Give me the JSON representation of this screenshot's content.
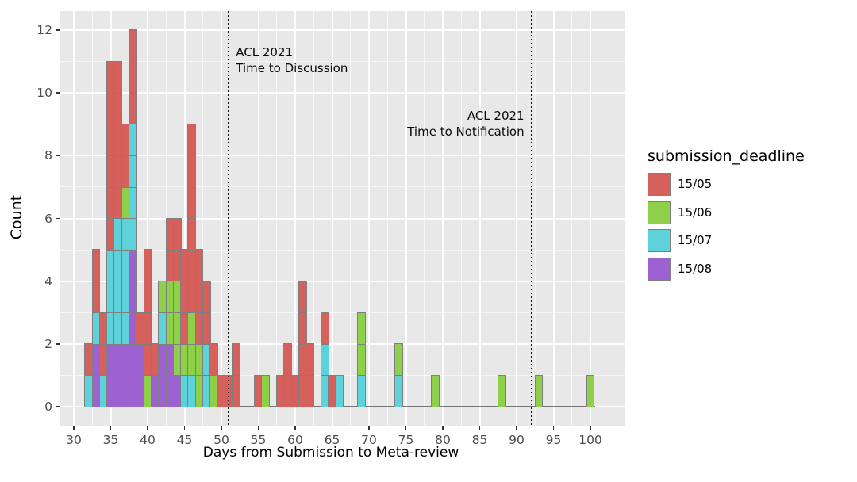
{
  "figure": {
    "x_axis_title": "Days from Submission to Meta-review",
    "y_axis_title": "Count",
    "legend": {
      "title": "submission_deadline",
      "items": [
        {
          "label": "15/05",
          "color": "#D6605B"
        },
        {
          "label": "15/06",
          "color": "#8FD04A"
        },
        {
          "label": "15/07",
          "color": "#5DD2DB"
        },
        {
          "label": "15/08",
          "color": "#9D61D2"
        }
      ]
    },
    "annotations": [
      {
        "line1": "ACL 2021",
        "line2": "Time to Discussion",
        "at_day": 51,
        "align": "left"
      },
      {
        "line1": "ACL 2021",
        "line2": "Time to Notification",
        "at_day": 92,
        "align": "right"
      }
    ],
    "colors": {
      "panel_bg": "#E8E8E8",
      "grid_major": "#FFFFFF",
      "cell_border": "#7F7F7F",
      "tick_label": "#4D4D4D",
      "baseline": "#757575",
      "vline": "#111111"
    }
  },
  "chart_data": {
    "type": "bar",
    "subtype": "stacked_histogram_unit_cells",
    "title": "",
    "xlabel": "Days from Submission to Meta-review",
    "ylabel": "Count",
    "binwidth": 1,
    "grid": true,
    "legend_position": "right",
    "x_ticks": [
      30,
      35,
      40,
      45,
      50,
      55,
      60,
      65,
      70,
      75,
      80,
      85,
      90,
      95,
      100
    ],
    "y_ticks": [
      0,
      2,
      4,
      6,
      8,
      10,
      12
    ],
    "xlim": [
      28.2,
      104.5
    ],
    "ylim": [
      -0.6,
      12.6
    ],
    "data_range": [
      31.5,
      100.5
    ],
    "stack_order_bottom_to_top": [
      "15/08",
      "15/07",
      "15/06",
      "15/05"
    ],
    "vlines": [
      {
        "x": 51,
        "style": "dotted",
        "label": "ACL 2021 Time to Discussion"
      },
      {
        "x": 92,
        "style": "dotted",
        "label": "ACL 2021 Time to Notification"
      }
    ],
    "bins": [
      {
        "day": 32,
        "counts": {
          "15/07": 1,
          "15/05": 1
        }
      },
      {
        "day": 33,
        "counts": {
          "15/08": 2,
          "15/07": 1,
          "15/05": 2
        }
      },
      {
        "day": 34,
        "counts": {
          "15/07": 1,
          "15/05": 2
        }
      },
      {
        "day": 35,
        "counts": {
          "15/08": 2,
          "15/07": 3,
          "15/05": 6
        }
      },
      {
        "day": 36,
        "counts": {
          "15/08": 2,
          "15/07": 4,
          "15/05": 5
        }
      },
      {
        "day": 37,
        "counts": {
          "15/08": 2,
          "15/07": 4,
          "15/06": 1,
          "15/05": 2
        }
      },
      {
        "day": 38,
        "counts": {
          "15/08": 5,
          "15/07": 4,
          "15/05": 3
        }
      },
      {
        "day": 39,
        "counts": {
          "15/08": 2,
          "15/05": 1
        }
      },
      {
        "day": 40,
        "counts": {
          "15/06": 1,
          "15/05": 4
        }
      },
      {
        "day": 41,
        "counts": {
          "15/08": 1,
          "15/05": 1
        }
      },
      {
        "day": 42,
        "counts": {
          "15/08": 2,
          "15/07": 1,
          "15/06": 1
        }
      },
      {
        "day": 43,
        "counts": {
          "15/08": 2,
          "15/06": 2,
          "15/05": 2
        }
      },
      {
        "day": 44,
        "counts": {
          "15/08": 1,
          "15/06": 3,
          "15/05": 2
        }
      },
      {
        "day": 45,
        "counts": {
          "15/07": 1,
          "15/06": 1,
          "15/05": 3
        }
      },
      {
        "day": 46,
        "counts": {
          "15/07": 1,
          "15/06": 2,
          "15/05": 6
        }
      },
      {
        "day": 47,
        "counts": {
          "15/06": 2,
          "15/05": 3
        }
      },
      {
        "day": 48,
        "counts": {
          "15/07": 2,
          "15/05": 2
        }
      },
      {
        "day": 49,
        "counts": {
          "15/06": 1,
          "15/05": 1
        }
      },
      {
        "day": 50,
        "counts": {
          "15/05": 1
        }
      },
      {
        "day": 51,
        "counts": {
          "15/05": 1
        }
      },
      {
        "day": 52,
        "counts": {
          "15/05": 2
        }
      },
      {
        "day": 55,
        "counts": {
          "15/05": 1
        }
      },
      {
        "day": 56,
        "counts": {
          "15/06": 1
        }
      },
      {
        "day": 58,
        "counts": {
          "15/05": 1
        }
      },
      {
        "day": 59,
        "counts": {
          "15/05": 2
        }
      },
      {
        "day": 60,
        "counts": {
          "15/05": 1
        }
      },
      {
        "day": 61,
        "counts": {
          "15/05": 4
        }
      },
      {
        "day": 62,
        "counts": {
          "15/05": 2
        }
      },
      {
        "day": 64,
        "counts": {
          "15/07": 2,
          "15/05": 1
        }
      },
      {
        "day": 65,
        "counts": {
          "15/05": 1
        }
      },
      {
        "day": 66,
        "counts": {
          "15/07": 1
        }
      },
      {
        "day": 69,
        "counts": {
          "15/07": 1,
          "15/06": 2
        }
      },
      {
        "day": 74,
        "counts": {
          "15/07": 1,
          "15/06": 1
        }
      },
      {
        "day": 79,
        "counts": {
          "15/06": 1
        }
      },
      {
        "day": 88,
        "counts": {
          "15/06": 1
        }
      },
      {
        "day": 93,
        "counts": {
          "15/06": 1
        }
      },
      {
        "day": 100,
        "counts": {
          "15/06": 1
        }
      }
    ]
  }
}
